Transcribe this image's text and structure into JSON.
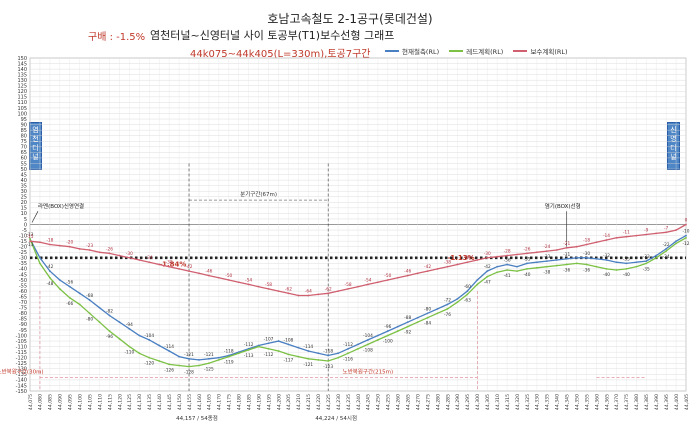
{
  "title": "호남고속철도 2-1공구(롯데건설)",
  "gradient_label": "구배 : -1.5%",
  "subtitle": "염천터널~신영터널 사이 토공부(T1)보수선형 그래프",
  "section_label": "44k075~44k405(L=330m),토공7구간",
  "tunnel_left": "염천터널",
  "tunnel_right": "신영터널",
  "annotations": {
    "box_left": "라멘(BOX)신영연결",
    "box_right": "염기(BOX)선형",
    "branch": "분기구간(67m)",
    "slope_left": "-1.84%",
    "slope_right": "-1.13%",
    "roadbed_1": "노반복원구간(215m)",
    "roadbed_2": "노반복원구간(30m)",
    "station_a": "44,157 / 54종점",
    "station_b": "44,224 / 54시점"
  },
  "colors": {
    "series1": "#4a7fc1",
    "series2": "#7cc145",
    "series3": "#d06070",
    "reference": "#222222"
  },
  "chart_data": {
    "type": "line",
    "ylim": [
      -150,
      150
    ],
    "yticks_step": 5,
    "grid": true,
    "legend_position": "top",
    "x": [
      "44,075",
      "44,080",
      "44,085",
      "44,090",
      "44,095",
      "44,100",
      "44,105",
      "44,110",
      "44,115",
      "44,120",
      "44,125",
      "44,130",
      "44,135",
      "44,140",
      "44,145",
      "44,150",
      "44,155",
      "44,160",
      "44,165",
      "44,170",
      "44,175",
      "44,180",
      "44,185",
      "44,190",
      "44,195",
      "44,200",
      "44,205",
      "44,210",
      "44,215",
      "44,220",
      "44,225",
      "44,230",
      "44,235",
      "44,240",
      "44,245",
      "44,250",
      "44,255",
      "44,260",
      "44,265",
      "44,270",
      "44,275",
      "44,280",
      "44,285",
      "44,290",
      "44,295",
      "44,300",
      "44,305",
      "44,310",
      "44,315",
      "44,320",
      "44,325",
      "44,330",
      "44,335",
      "44,340",
      "44,345",
      "44,350",
      "44,355",
      "44,360",
      "44,365",
      "44,370",
      "44,375",
      "44,380",
      "44,385",
      "44,390",
      "44,395",
      "44,400",
      "44,405"
    ],
    "reference_line": -30,
    "series": [
      {
        "name": "현재철측(RL)",
        "values": [
          -13,
          -30,
          -42,
          -50,
          -56,
          -62,
          -68,
          -75,
          -82,
          -88,
          -94,
          -100,
          -104,
          -109,
          -114,
          -119,
          -121,
          -122,
          -121,
          -120,
          -118,
          -115,
          -112,
          -109,
          -107,
          -105,
          -108,
          -111,
          -114,
          -116,
          -118,
          -116,
          -112,
          -108,
          -104,
          -100,
          -96,
          -92,
          -88,
          -84,
          -80,
          -76,
          -72,
          -67,
          -60,
          -50,
          -42,
          -38,
          -36,
          -38,
          -35,
          -34,
          -33,
          -32,
          -31,
          -30,
          -30,
          -31,
          -32,
          -34,
          -35,
          -34,
          -33,
          -28,
          -22,
          -15,
          -10
        ]
      },
      {
        "name": "레드계획(RL)",
        "values": [
          -13,
          -35,
          -48,
          -58,
          -66,
          -72,
          -80,
          -88,
          -96,
          -103,
          -110,
          -116,
          -120,
          -123,
          -126,
          -127,
          -128,
          -127,
          -125,
          -122,
          -119,
          -116,
          -113,
          -110,
          -112,
          -114,
          -117,
          -119,
          -121,
          -122,
          -123,
          -120,
          -116,
          -112,
          -108,
          -104,
          -100,
          -96,
          -92,
          -88,
          -84,
          -80,
          -76,
          -70,
          -63,
          -54,
          -47,
          -43,
          -41,
          -42,
          -40,
          -39,
          -38,
          -37,
          -36,
          -35,
          -36,
          -38,
          -40,
          -41,
          -40,
          -38,
          -35,
          -30,
          -24,
          -17,
          -12
        ]
      },
      {
        "name": "보수계획(RL)",
        "values": [
          -15,
          -16,
          -18,
          -19,
          -20,
          -22,
          -23,
          -25,
          -26,
          -28,
          -30,
          -32,
          -34,
          -36,
          -38,
          -40,
          -42,
          -44,
          -46,
          -48,
          -50,
          -52,
          -54,
          -56,
          -58,
          -60,
          -62,
          -64,
          -64,
          -63,
          -62,
          -60,
          -58,
          -56,
          -54,
          -52,
          -50,
          -48,
          -46,
          -44,
          -42,
          -40,
          -38,
          -36,
          -34,
          -32,
          -30,
          -29,
          -28,
          -27,
          -26,
          -25,
          -24,
          -23,
          -21,
          -20,
          -18,
          -16,
          -14,
          -12,
          -11,
          -10,
          -9,
          -8,
          -7,
          -5,
          0
        ]
      }
    ]
  }
}
